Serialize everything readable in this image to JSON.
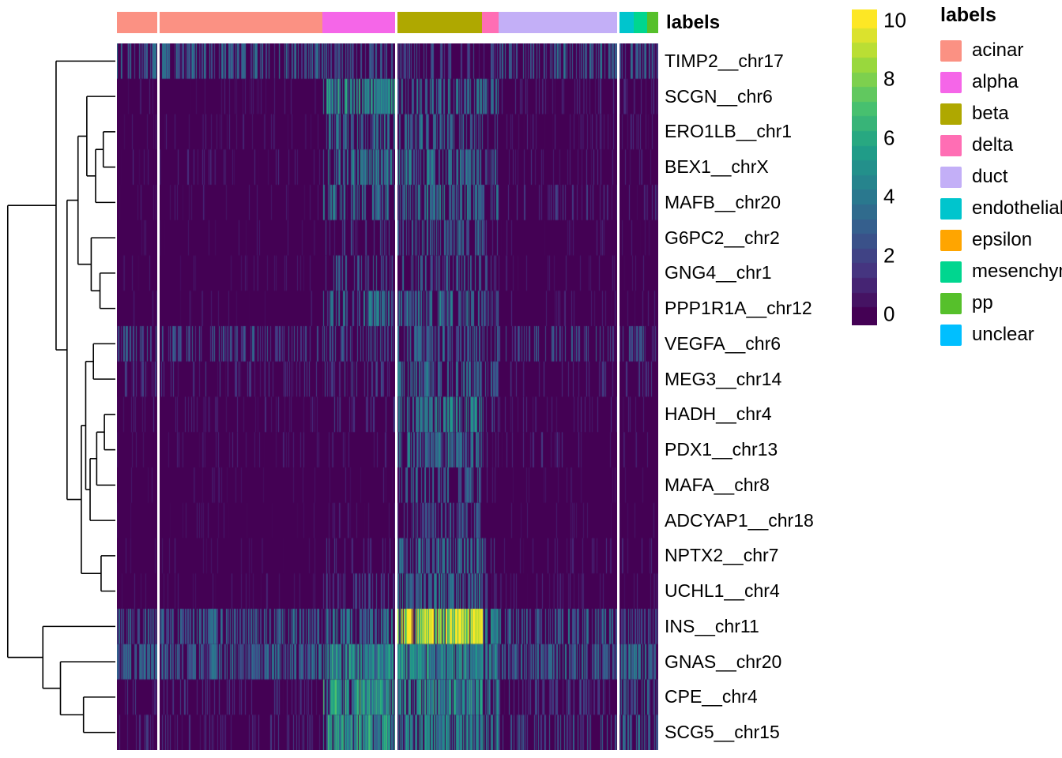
{
  "chart_data": {
    "type": "heatmap",
    "colormap": "viridis",
    "value_scale": {
      "min": 0,
      "max": 10,
      "ticks": [
        10,
        8,
        6,
        4,
        2,
        0
      ]
    },
    "rows": [
      "TIMP2__chr17",
      "SCGN__chr6",
      "ERO1LB__chr1",
      "BEX1__chrX",
      "MAFB__chr20",
      "G6PC2__chr2",
      "GNG4__chr1",
      "PPP1R1A__chr12",
      "VEGFA__chr6",
      "MEG3__chr14",
      "HADH__chr4",
      "PDX1__chr13",
      "MAFA__chr8",
      "ADCYAP1__chr18",
      "NPTX2__chr7",
      "UCHL1__chr4",
      "INS__chr11",
      "GNAS__chr20",
      "CPE__chr4",
      "SCG5__chr15"
    ],
    "column_annotation": {
      "title": "labels",
      "groups": [
        {
          "label": "acinar",
          "color": "#FB9183",
          "fraction": 0.38
        },
        {
          "label": "alpha",
          "color": "#F566E8",
          "fraction": 0.135
        },
        {
          "label": "beta",
          "color": "#AFA800",
          "fraction": 0.16
        },
        {
          "label": "delta",
          "color": "#FF6EB4",
          "fraction": 0.03
        },
        {
          "label": "duct",
          "color": "#C3AFF7",
          "fraction": 0.22
        },
        {
          "label": "endothelial",
          "color": "#00C5CD",
          "fraction": 0.03
        },
        {
          "label": "mesenchymal",
          "color": "#00D68F",
          "fraction": 0.025
        },
        {
          "label": "pp",
          "color": "#56C02B",
          "fraction": 0.02
        }
      ]
    },
    "column_gaps": [
      0.076,
      0.515,
      0.925
    ],
    "legend": {
      "title": "labels",
      "items": [
        {
          "label": "acinar",
          "color": "#FB9183"
        },
        {
          "label": "alpha",
          "color": "#F566E8"
        },
        {
          "label": "beta",
          "color": "#AFA800"
        },
        {
          "label": "delta",
          "color": "#FF6EB4"
        },
        {
          "label": "duct",
          "color": "#C3AFF7"
        },
        {
          "label": "endothelial",
          "color": "#00C5CD"
        },
        {
          "label": "epsilon",
          "color": "#FFA500"
        },
        {
          "label": "mesenchymal",
          "color": "#00D68F"
        },
        {
          "label": "pp",
          "color": "#56C02B"
        },
        {
          "label": "unclear",
          "color": "#00BFFF"
        }
      ]
    },
    "expression_profiles": {
      "note": "mean expression level (0-10) and fraction of expressing cells per column group, read from heatmap streak intensity/density",
      "groups": [
        "acinar",
        "alpha",
        "beta",
        "delta",
        "duct",
        "endothelial",
        "mesenchymal",
        "pp"
      ],
      "levels": [
        [
          3.0,
          2.5,
          2.2,
          2.5,
          3.0,
          3.0,
          3.0,
          2.5
        ],
        [
          0.8,
          4.5,
          3.5,
          3.0,
          1.2,
          1.0,
          1.0,
          1.0
        ],
        [
          0.8,
          3.5,
          3.0,
          2.5,
          1.0,
          1.0,
          1.0,
          1.0
        ],
        [
          1.0,
          3.8,
          3.5,
          3.0,
          1.2,
          1.0,
          1.0,
          1.0
        ],
        [
          0.8,
          3.5,
          3.5,
          3.0,
          1.5,
          1.5,
          1.5,
          1.5
        ],
        [
          0.6,
          2.0,
          3.0,
          1.5,
          0.8,
          0.8,
          0.8,
          0.8
        ],
        [
          0.6,
          2.5,
          3.0,
          2.0,
          0.8,
          0.8,
          0.8,
          0.8
        ],
        [
          0.8,
          3.5,
          3.5,
          2.5,
          1.0,
          1.0,
          1.0,
          1.0
        ],
        [
          2.5,
          2.5,
          3.0,
          2.5,
          2.5,
          2.5,
          2.5,
          2.0
        ],
        [
          1.5,
          2.0,
          3.5,
          3.0,
          1.5,
          1.5,
          1.5,
          1.5
        ],
        [
          1.0,
          1.5,
          4.0,
          2.0,
          1.0,
          1.0,
          1.0,
          1.0
        ],
        [
          0.8,
          1.0,
          3.5,
          1.5,
          1.2,
          0.8,
          0.8,
          0.8
        ],
        [
          0.5,
          0.8,
          3.0,
          1.0,
          0.5,
          0.5,
          0.5,
          0.5
        ],
        [
          0.5,
          0.8,
          2.5,
          1.0,
          0.5,
          0.5,
          0.5,
          0.5
        ],
        [
          0.8,
          1.5,
          3.5,
          2.0,
          1.0,
          1.0,
          1.0,
          1.0
        ],
        [
          0.8,
          2.0,
          3.5,
          2.0,
          1.0,
          1.0,
          1.0,
          1.0
        ],
        [
          3.0,
          3.5,
          9.5,
          4.0,
          3.0,
          2.5,
          2.5,
          2.5
        ],
        [
          3.0,
          4.5,
          4.5,
          4.0,
          3.0,
          3.5,
          3.5,
          3.0
        ],
        [
          1.5,
          5.0,
          4.5,
          4.0,
          2.0,
          3.0,
          3.0,
          2.5
        ],
        [
          1.5,
          5.0,
          4.0,
          4.0,
          2.5,
          3.0,
          3.0,
          2.5
        ]
      ],
      "density": [
        [
          0.5,
          0.35,
          0.3,
          0.4,
          0.45,
          0.5,
          0.5,
          0.4
        ],
        [
          0.08,
          0.75,
          0.5,
          0.5,
          0.15,
          0.2,
          0.2,
          0.2
        ],
        [
          0.06,
          0.5,
          0.45,
          0.4,
          0.12,
          0.15,
          0.15,
          0.15
        ],
        [
          0.08,
          0.55,
          0.55,
          0.45,
          0.12,
          0.15,
          0.15,
          0.15
        ],
        [
          0.06,
          0.5,
          0.55,
          0.5,
          0.18,
          0.2,
          0.2,
          0.2
        ],
        [
          0.05,
          0.25,
          0.45,
          0.25,
          0.08,
          0.1,
          0.1,
          0.1
        ],
        [
          0.05,
          0.3,
          0.4,
          0.3,
          0.08,
          0.1,
          0.1,
          0.1
        ],
        [
          0.06,
          0.55,
          0.55,
          0.4,
          0.1,
          0.12,
          0.12,
          0.12
        ],
        [
          0.35,
          0.35,
          0.5,
          0.4,
          0.35,
          0.4,
          0.4,
          0.3
        ],
        [
          0.15,
          0.3,
          0.55,
          0.5,
          0.18,
          0.2,
          0.2,
          0.2
        ],
        [
          0.1,
          0.2,
          0.65,
          0.3,
          0.1,
          0.12,
          0.12,
          0.12
        ],
        [
          0.07,
          0.12,
          0.6,
          0.25,
          0.15,
          0.1,
          0.1,
          0.1
        ],
        [
          0.04,
          0.08,
          0.45,
          0.15,
          0.05,
          0.06,
          0.06,
          0.06
        ],
        [
          0.04,
          0.08,
          0.4,
          0.15,
          0.05,
          0.06,
          0.06,
          0.06
        ],
        [
          0.07,
          0.2,
          0.55,
          0.3,
          0.1,
          0.12,
          0.12,
          0.12
        ],
        [
          0.07,
          0.3,
          0.55,
          0.3,
          0.1,
          0.12,
          0.12,
          0.12
        ],
        [
          0.5,
          0.6,
          1.0,
          0.7,
          0.5,
          0.5,
          0.5,
          0.5
        ],
        [
          0.6,
          0.9,
          0.85,
          0.75,
          0.55,
          0.65,
          0.65,
          0.65
        ],
        [
          0.2,
          0.9,
          0.8,
          0.7,
          0.3,
          0.5,
          0.5,
          0.5
        ],
        [
          0.2,
          0.9,
          0.75,
          0.7,
          0.35,
          0.5,
          0.5,
          0.5
        ]
      ]
    },
    "dendrogram": {
      "h": 9.8,
      "c": [
        {
          "h": 5.4,
          "c": [
            "TIMP2__chr17",
            {
              "h": 4.4,
              "c": [
                {
                  "h": 3.4,
                  "c": [
                    {
                      "h": 2.6,
                      "c": [
                        "SCGN__chr6",
                        {
                          "h": 1.8,
                          "c": [
                            {
                              "h": 1.1,
                              "c": [
                                "ERO1LB__chr1",
                                "BEX1__chrX"
                              ]
                            },
                            "MAFB__chr20"
                          ]
                        }
                      ]
                    },
                    {
                      "h": 2.2,
                      "c": [
                        "G6PC2__chr2",
                        {
                          "h": 1.4,
                          "c": [
                            "GNG4__chr1",
                            "PPP1R1A__chr12"
                          ]
                        }
                      ]
                    }
                  ]
                },
                {
                  "h": 3.1,
                  "c": [
                    {
                      "h": 2.7,
                      "c": [
                        {
                          "h": 2.0,
                          "c": [
                            "VEGFA__chr6",
                            "MEG3__chr14"
                          ]
                        },
                        {
                          "h": 2.3,
                          "c": [
                            {
                              "h": 1.7,
                              "c": [
                                {
                                  "h": 1.0,
                                  "c": [
                                    "HADH__chr4",
                                    "PDX1__chr13"
                                  ]
                                },
                                "MAFA__chr8"
                              ]
                            },
                            "ADCYAP1__chr18"
                          ]
                        }
                      ]
                    },
                    {
                      "h": 1.3,
                      "c": [
                        "NPTX2__chr7",
                        "UCHL1__chr4"
                      ]
                    }
                  ]
                }
              ]
            }
          ]
        },
        {
          "h": 6.6,
          "c": [
            "INS__chr11",
            {
              "h": 5.0,
              "c": [
                "GNAS__chr20",
                {
                  "h": 2.9,
                  "c": [
                    "CPE__chr4",
                    "SCG5__chr15"
                  ]
                }
              ]
            }
          ]
        }
      ]
    }
  }
}
